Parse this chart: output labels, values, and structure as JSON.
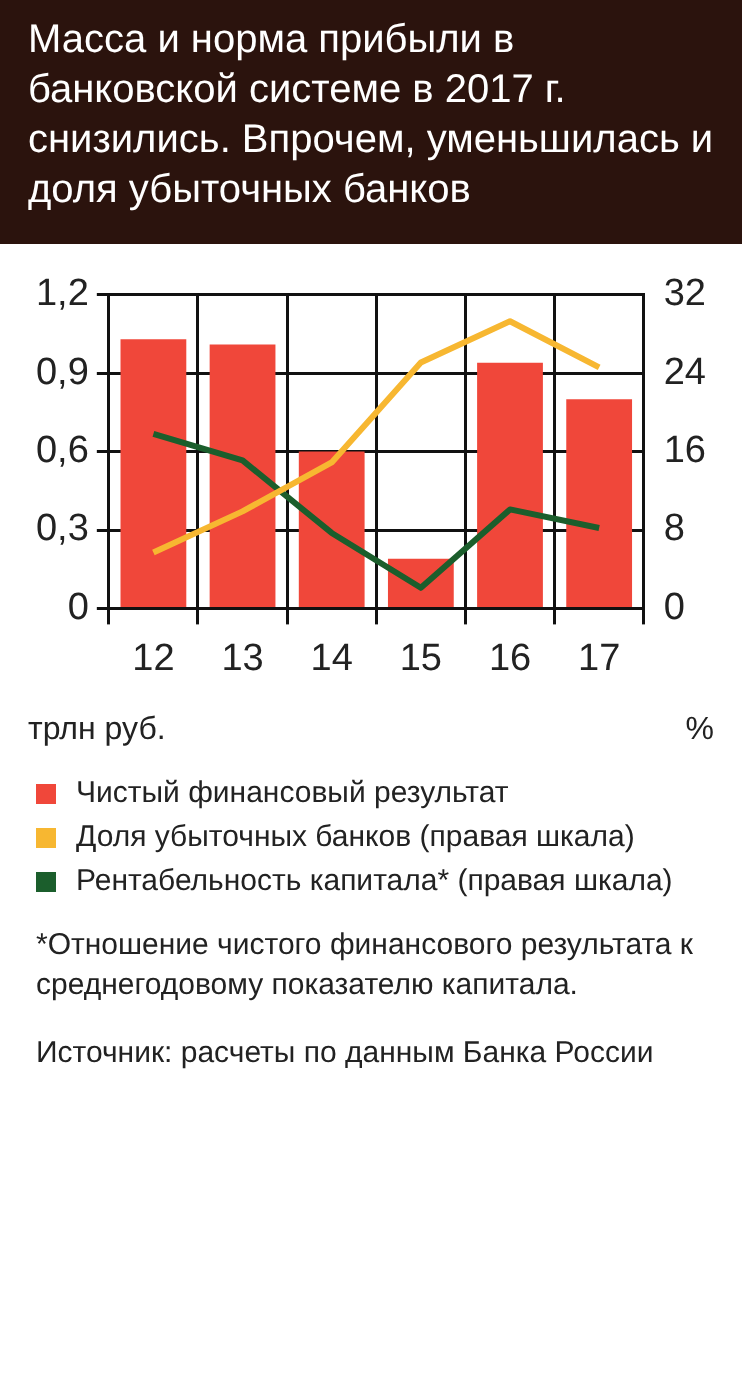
{
  "chart_data": {
    "type": "bar",
    "title": "Масса и норма прибыли в банковской системе в 2017 г. снизились. Впрочем, уменьшилась и доля убыточных банков",
    "categories": [
      "12",
      "13",
      "14",
      "15",
      "16",
      "17"
    ],
    "series": [
      {
        "name": "Чистый финансовый результат",
        "color": "#f0473a",
        "values": [
          1.03,
          1.01,
          0.6,
          0.19,
          0.94,
          0.8
        ]
      },
      {
        "name": "Доля убыточных банков (правая шкала)",
        "type": "line",
        "axis": "y2",
        "color": "#f7b731",
        "values": [
          5.7,
          9.9,
          14.9,
          25.1,
          29.3,
          24.6
        ]
      },
      {
        "name": "Рентабельность капитала* (правая шкала)",
        "type": "line",
        "axis": "y2",
        "color": "#1b5e2c",
        "values": [
          17.8,
          15.1,
          7.7,
          2.1,
          10.1,
          8.2
        ]
      }
    ],
    "ylabel": "трлн руб.",
    "y2label": "%",
    "ylim": [
      0,
      1.2
    ],
    "yticks": [
      0,
      {
        "value": 0.3,
        "label": "0,3"
      },
      {
        "value": 0.6,
        "label": "0,6"
      },
      {
        "value": 0.9,
        "label": "0,9"
      },
      {
        "value": 1.2,
        "label": "1,2"
      }
    ],
    "y2lim": [
      0,
      32
    ],
    "y2ticks": [
      0,
      8,
      16,
      24,
      32
    ],
    "grid": true,
    "legend": "bottom",
    "annotations": [
      "*Отношение чистого финансового результата к среднегодовому показателю капитала.",
      "Источник: расчеты по данным Банка России"
    ]
  }
}
